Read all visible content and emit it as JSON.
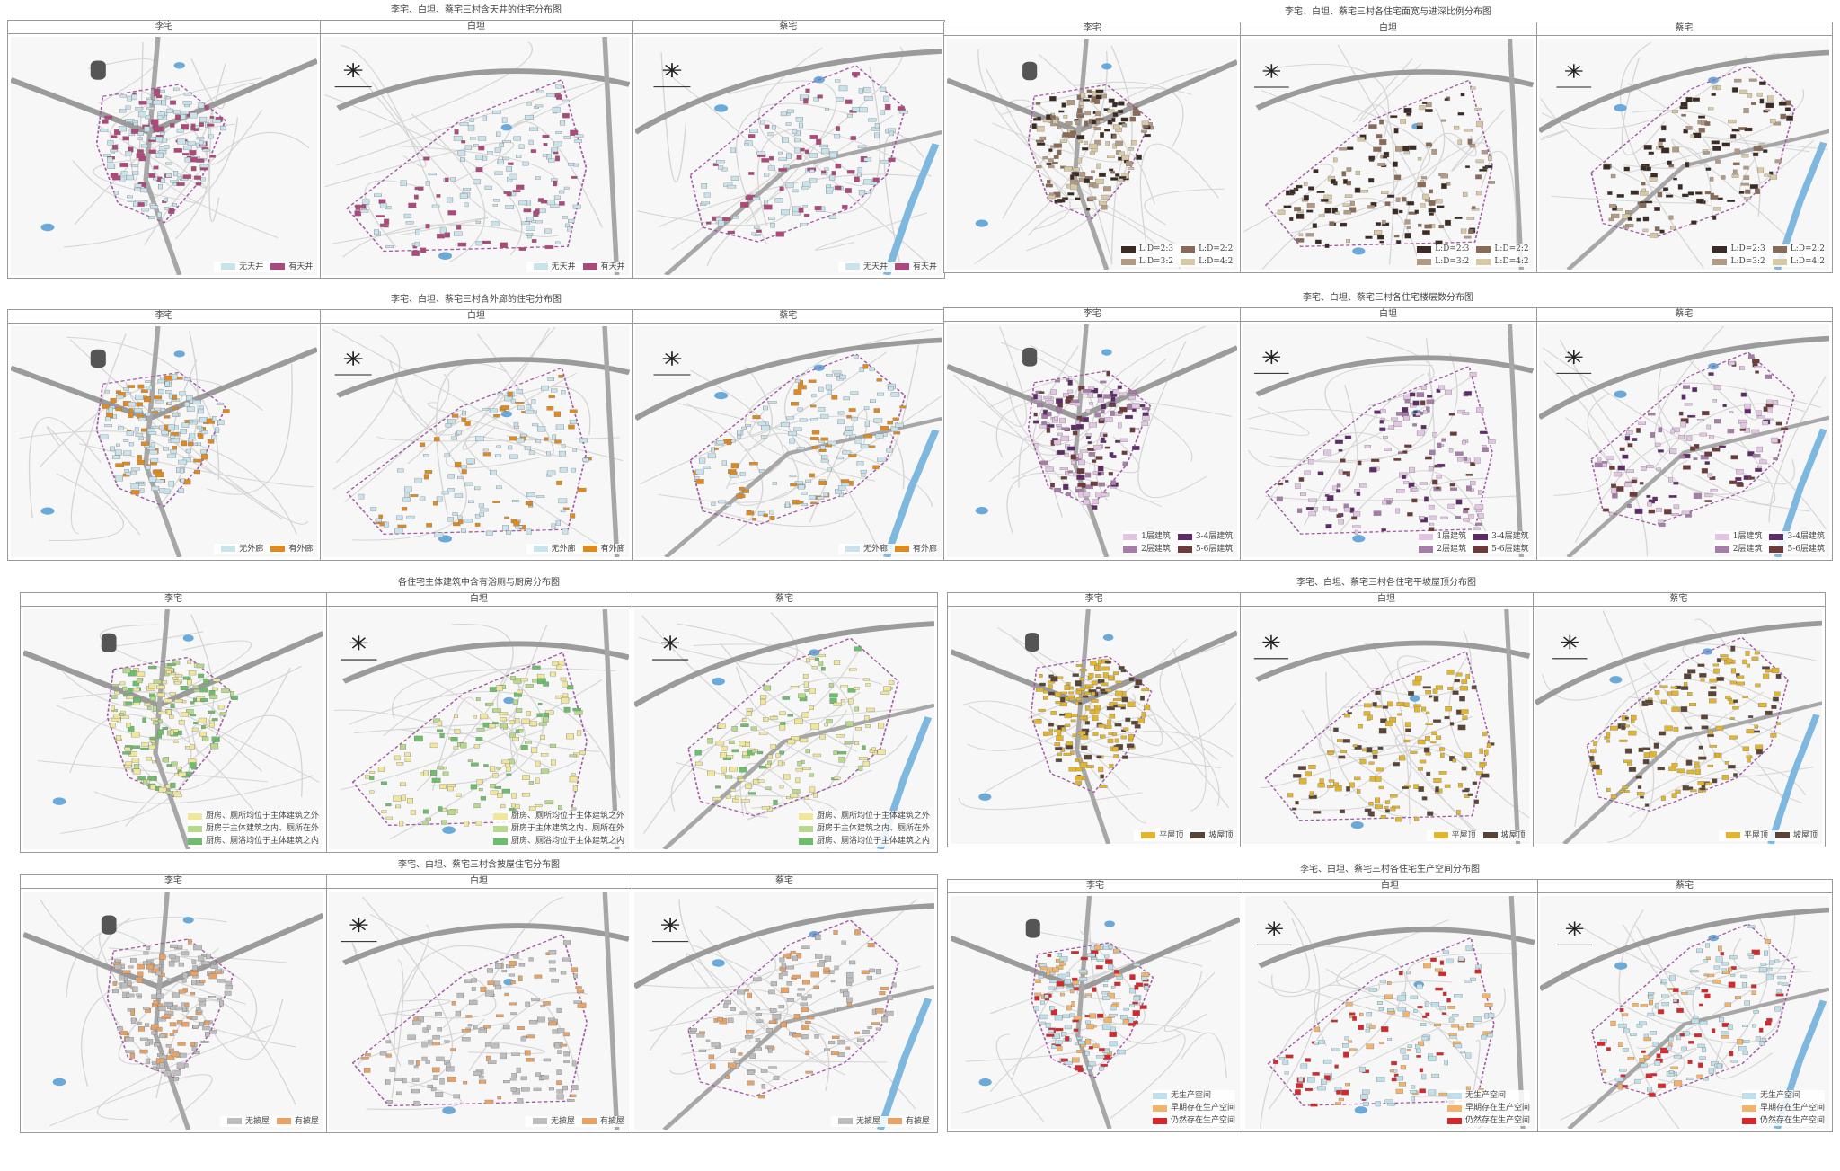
{
  "villages": [
    "李宅",
    "白坦",
    "蔡宅"
  ],
  "colors": {
    "pale_blue": "#c9e3ec",
    "magenta": "#b0467a",
    "orange": "#e08a1e",
    "ld_1": "#3b2b24",
    "ld_2": "#8a6a55",
    "ld_3": "#b39a83",
    "ld_4": "#d8c9a5",
    "floor_1": "#e2c5e3",
    "floor_2": "#a87ca8",
    "floor_3": "#5e2a6a",
    "floor_4": "#6e3a3a",
    "kitchen_out": "#f0e79a",
    "kitchen_mid": "#b7d98a",
    "kitchen_in": "#6cbf6a",
    "flat_roof": "#e3b52c",
    "slope_roof": "#5a4436",
    "annex_none": "#bdbdbd",
    "annex_yes": "#e8a265",
    "prod_none": "#bfe0ea",
    "prod_past": "#f2b46b",
    "prod_now": "#d8262a"
  },
  "panels": [
    {
      "id": "courtyard",
      "title": "李宅、白坦、蔡宅三村含天井的住宅分布图",
      "legend": [
        {
          "label": "无天井",
          "color": "#c9e3ec"
        },
        {
          "label": "有天井",
          "color": "#b0467a"
        }
      ]
    },
    {
      "id": "ratio",
      "title": "李宅、白坦、蔡宅三村各住宅面宽与进深比例分布图",
      "legend": [
        {
          "label": "L:D=2:3",
          "color": "#3b2b24"
        },
        {
          "label": "L:D=2:2",
          "color": "#8a6a55"
        },
        {
          "label": "L:D=3:2",
          "color": "#b39a83"
        },
        {
          "label": "L:D=4:2",
          "color": "#d8c9a5"
        }
      ]
    },
    {
      "id": "corridor",
      "title": "李宅、白坦、蔡宅三村含外廊的住宅分布图",
      "legend": [
        {
          "label": "无外廊",
          "color": "#c9e3ec"
        },
        {
          "label": "有外廊",
          "color": "#e08a1e"
        }
      ]
    },
    {
      "id": "floors",
      "title": "李宅、白坦、蔡宅三村各住宅楼层数分布图",
      "legend": [
        {
          "label": "1层建筑",
          "color": "#e2c5e3"
        },
        {
          "label": "3-4层建筑",
          "color": "#5e2a6a"
        },
        {
          "label": "2层建筑",
          "color": "#a87ca8"
        },
        {
          "label": "5-6层建筑",
          "color": "#6e3a3a"
        }
      ]
    },
    {
      "id": "kitchen",
      "title": "各住宅主体建筑中含有浴厕与厨房分布图",
      "legend": [
        {
          "label": "厨房、厕所均位于主体建筑之外",
          "color": "#f0e79a"
        },
        {
          "label": "厨房于主体建筑之内、厕所在外",
          "color": "#b7d98a"
        },
        {
          "label": "厨房、厕浴均位于主体建筑之内",
          "color": "#6cbf6a"
        }
      ]
    },
    {
      "id": "roof",
      "title": "李宅、白坦、蔡宅三村各住宅平坡屋顶分布图",
      "legend": [
        {
          "label": "平屋顶",
          "color": "#e3b52c"
        },
        {
          "label": "坡屋顶",
          "color": "#5a4436"
        }
      ]
    },
    {
      "id": "annex",
      "title": "李宅、白坦、蔡宅三村含披屋住宅分布图",
      "legend": [
        {
          "label": "无披屋",
          "color": "#bdbdbd"
        },
        {
          "label": "有披屋",
          "color": "#e8a265"
        }
      ]
    },
    {
      "id": "production",
      "title": "李宅、白坦、蔡宅三村各住宅生产空间分布图",
      "legend": [
        {
          "label": "无生产空间",
          "color": "#bfe0ea"
        },
        {
          "label": "早期存在生产空间",
          "color": "#f2b46b"
        },
        {
          "label": "仍然存在生产空间",
          "color": "#d8262a"
        }
      ]
    }
  ]
}
